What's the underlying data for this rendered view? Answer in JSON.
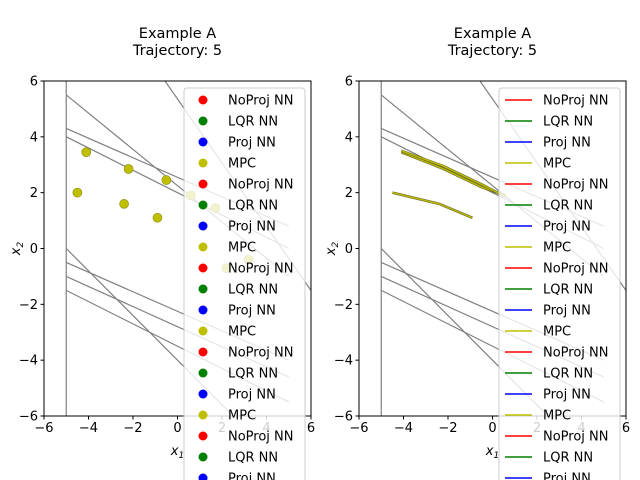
{
  "chart_data": [
    {
      "type": "scatter",
      "title": [
        "Example A",
        "Trajectory: 5"
      ],
      "xlabel": "x1",
      "ylabel": "x2",
      "xlim": [
        -6,
        6
      ],
      "ylim": [
        -6,
        6
      ],
      "xticks": [
        -6,
        -4,
        -2,
        0,
        2,
        4,
        6
      ],
      "yticks": [
        -6,
        -4,
        -2,
        0,
        2,
        4,
        6
      ],
      "constraint_lines": [
        {
          "x": [
            -5,
            5
          ],
          "y": [
            5.5,
            -1.0
          ]
        },
        {
          "x": [
            -5,
            5
          ],
          "y": [
            4.3,
            0.8
          ]
        },
        {
          "x": [
            -5,
            5
          ],
          "y": [
            4.0,
            0.0
          ]
        },
        {
          "x": [
            -5,
            5
          ],
          "y": [
            0.0,
            -8.0
          ]
        },
        {
          "x": [
            -5,
            5
          ],
          "y": [
            -0.5,
            -4.0
          ]
        },
        {
          "x": [
            -5,
            5
          ],
          "y": [
            -1.0,
            -4.6
          ]
        },
        {
          "x": [
            -5,
            5
          ],
          "y": [
            -1.5,
            -5.5
          ]
        },
        {
          "x": [
            -5,
            -5
          ],
          "y": [
            -6,
            6
          ]
        },
        {
          "x": [
            -1,
            6
          ],
          "y": [
            6.5,
            -1.5
          ]
        }
      ],
      "points": [
        {
          "x": -4.1,
          "y": 3.45
        },
        {
          "x": -4.5,
          "y": 2.0
        },
        {
          "x": -2.2,
          "y": 2.85
        },
        {
          "x": -0.5,
          "y": 2.45
        },
        {
          "x": -2.4,
          "y": 1.6
        },
        {
          "x": -0.9,
          "y": 1.1
        },
        {
          "x": 0.6,
          "y": 1.9
        },
        {
          "x": 1.7,
          "y": 1.45
        },
        {
          "x": 2.2,
          "y": -0.7
        },
        {
          "x": 3.2,
          "y": -0.4
        }
      ],
      "legend_position": "right",
      "legend": [
        {
          "label": "NoProj NN",
          "color": "#ff0000"
        },
        {
          "label": "LQR NN",
          "color": "#008000"
        },
        {
          "label": "Proj NN",
          "color": "#0000ff"
        },
        {
          "label": "MPC",
          "color": "#bfbf00"
        },
        {
          "label": "NoProj NN",
          "color": "#ff0000"
        },
        {
          "label": "LQR NN",
          "color": "#008000"
        },
        {
          "label": "Proj NN",
          "color": "#0000ff"
        },
        {
          "label": "MPC",
          "color": "#bfbf00"
        },
        {
          "label": "NoProj NN",
          "color": "#ff0000"
        },
        {
          "label": "LQR NN",
          "color": "#008000"
        },
        {
          "label": "Proj NN",
          "color": "#0000ff"
        },
        {
          "label": "MPC",
          "color": "#bfbf00"
        },
        {
          "label": "NoProj NN",
          "color": "#ff0000"
        },
        {
          "label": "LQR NN",
          "color": "#008000"
        },
        {
          "label": "Proj NN",
          "color": "#0000ff"
        },
        {
          "label": "MPC",
          "color": "#bfbf00"
        },
        {
          "label": "NoProj NN",
          "color": "#ff0000"
        },
        {
          "label": "LQR NN",
          "color": "#008000"
        },
        {
          "label": "Proj NN",
          "color": "#0000ff"
        }
      ]
    },
    {
      "type": "line",
      "title": [
        "Example A",
        "Trajectory: 5"
      ],
      "xlabel": "x1",
      "ylabel": "x2",
      "xlim": [
        -6,
        6
      ],
      "ylim": [
        -6,
        6
      ],
      "xticks": [
        -6,
        -4,
        -2,
        0,
        2,
        4,
        6
      ],
      "yticks": [
        -6,
        -4,
        -2,
        0,
        2,
        4,
        6
      ],
      "constraint_lines": [
        {
          "x": [
            -5,
            5
          ],
          "y": [
            5.5,
            -1.0
          ]
        },
        {
          "x": [
            -5,
            5
          ],
          "y": [
            4.3,
            0.8
          ]
        },
        {
          "x": [
            -5,
            5
          ],
          "y": [
            4.0,
            0.0
          ]
        },
        {
          "x": [
            -5,
            5
          ],
          "y": [
            0.0,
            -8.0
          ]
        },
        {
          "x": [
            -5,
            5
          ],
          "y": [
            -0.5,
            -4.0
          ]
        },
        {
          "x": [
            -5,
            5
          ],
          "y": [
            -1.0,
            -4.6
          ]
        },
        {
          "x": [
            -5,
            5
          ],
          "y": [
            -1.5,
            -5.5
          ]
        },
        {
          "x": [
            -5,
            -5
          ],
          "y": [
            -6,
            6
          ]
        },
        {
          "x": [
            -1,
            6
          ],
          "y": [
            6.5,
            -1.5
          ]
        }
      ],
      "trajectories": [
        {
          "x": [
            -4.1,
            -2.2,
            -0.5,
            0.6
          ],
          "y": [
            3.45,
            2.85,
            2.2,
            1.9
          ],
          "color": "#bfbf00"
        },
        {
          "x": [
            -4.1,
            -2.2,
            -0.5,
            0.6
          ],
          "y": [
            3.5,
            2.95,
            2.3,
            1.85
          ],
          "color": "#bfbf00"
        },
        {
          "x": [
            -4.5,
            -2.4,
            -0.9
          ],
          "y": [
            2.0,
            1.6,
            1.1
          ],
          "color": "#bfbf00"
        }
      ],
      "legend_position": "right",
      "legend": [
        {
          "label": "NoProj NN",
          "color": "#ff0000"
        },
        {
          "label": "LQR NN",
          "color": "#008000"
        },
        {
          "label": "Proj NN",
          "color": "#0000ff"
        },
        {
          "label": "MPC",
          "color": "#bfbf00"
        },
        {
          "label": "NoProj NN",
          "color": "#ff0000"
        },
        {
          "label": "LQR NN",
          "color": "#008000"
        },
        {
          "label": "Proj NN",
          "color": "#0000ff"
        },
        {
          "label": "MPC",
          "color": "#bfbf00"
        },
        {
          "label": "NoProj NN",
          "color": "#ff0000"
        },
        {
          "label": "LQR NN",
          "color": "#008000"
        },
        {
          "label": "Proj NN",
          "color": "#0000ff"
        },
        {
          "label": "MPC",
          "color": "#bfbf00"
        },
        {
          "label": "NoProj NN",
          "color": "#ff0000"
        },
        {
          "label": "LQR NN",
          "color": "#008000"
        },
        {
          "label": "Proj NN",
          "color": "#0000ff"
        },
        {
          "label": "MPC",
          "color": "#bfbf00"
        },
        {
          "label": "NoProj NN",
          "color": "#ff0000"
        },
        {
          "label": "LQR NN",
          "color": "#008000"
        },
        {
          "label": "Proj NN",
          "color": "#0000ff"
        }
      ]
    }
  ]
}
